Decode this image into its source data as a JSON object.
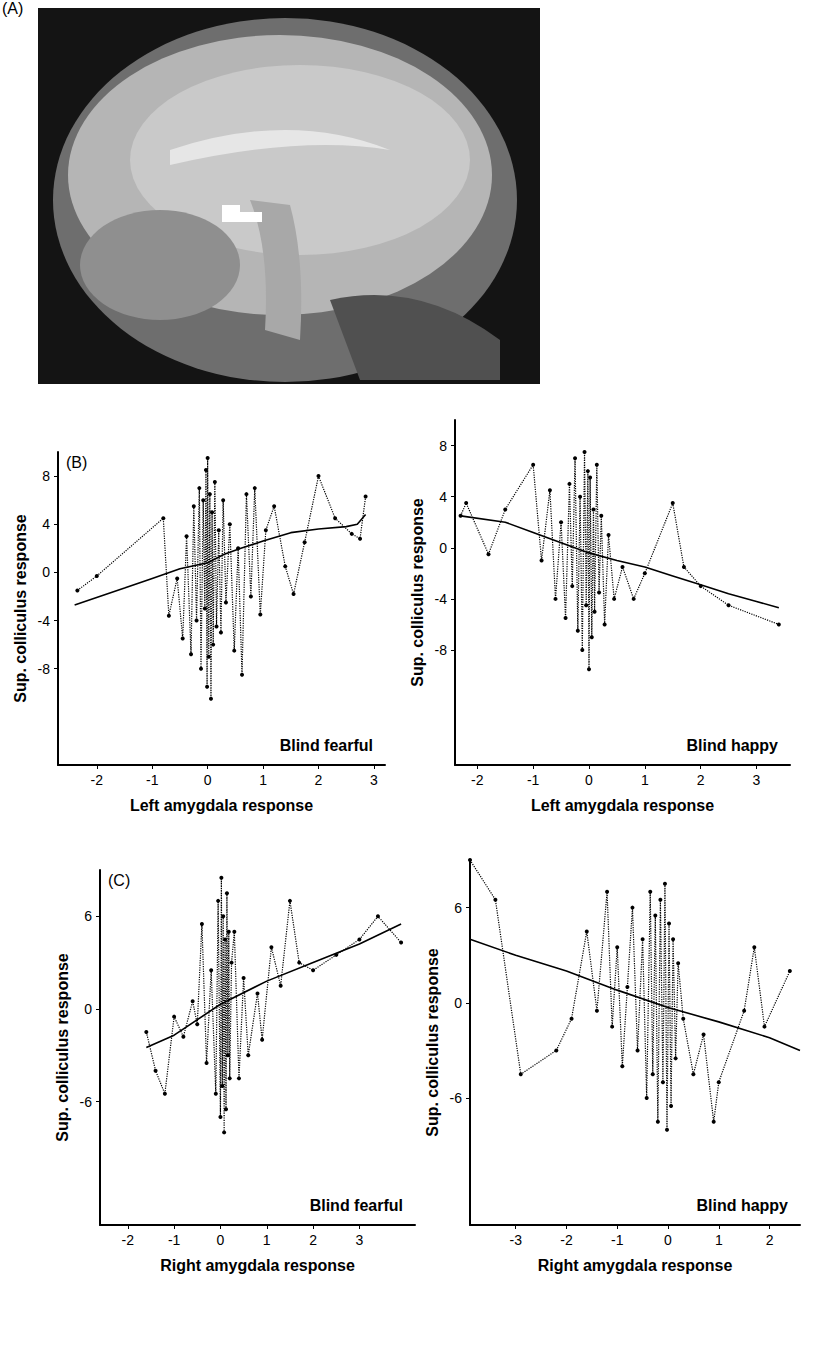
{
  "image_panel": {
    "panel_label": "(A)"
  },
  "chart_data": [
    {
      "type": "line",
      "panel_label": "(B)",
      "annotation": "Blind fearful",
      "xlabel": "Left amygdala response",
      "ylabel": "Sup. colliculus response",
      "xlim": [
        -2.7,
        3.2
      ],
      "xticks": [
        -2,
        -1,
        0,
        1,
        2,
        3
      ],
      "ylim": [
        -16,
        10
      ],
      "yticks": [
        -8,
        -4,
        0,
        4,
        8
      ],
      "grid": false,
      "series": [
        {
          "type": "line",
          "color": "#000000",
          "marker": "circle",
          "line_style": "dotted",
          "x": [
            -2.35,
            -2.0,
            -0.8,
            -0.7,
            -0.55,
            -0.45,
            -0.38,
            -0.3,
            -0.25,
            -0.2,
            -0.15,
            -0.12,
            -0.08,
            -0.05,
            -0.03,
            -0.01,
            0.0,
            0.02,
            0.04,
            0.06,
            0.08,
            0.1,
            0.13,
            0.16,
            0.2,
            0.24,
            0.28,
            0.33,
            0.4,
            0.48,
            0.55,
            0.62,
            0.7,
            0.78,
            0.85,
            0.95,
            1.05,
            1.2,
            1.4,
            1.55,
            1.75,
            2.0,
            2.3,
            2.6,
            2.75,
            2.85
          ],
          "values": [
            -1.5,
            -0.3,
            4.5,
            -3.6,
            -0.5,
            -5.5,
            3.0,
            -6.8,
            5.5,
            -4.0,
            7.0,
            -8.0,
            6.0,
            -3.0,
            8.5,
            -9.5,
            9.5,
            -7.0,
            6.5,
            -10.5,
            5.0,
            -6.0,
            7.5,
            -4.5,
            3.5,
            -5.0,
            6.0,
            -2.5,
            4.0,
            -6.5,
            2.0,
            -8.5,
            6.5,
            -2.0,
            7.0,
            -3.5,
            3.5,
            5.5,
            0.5,
            -1.8,
            2.5,
            8.0,
            4.5,
            3.2,
            2.8,
            6.3
          ]
        },
        {
          "type": "line",
          "color": "#000000",
          "marker": "none",
          "line_style": "solid",
          "x": [
            -2.4,
            -1.5,
            -1.0,
            -0.5,
            0,
            0.3,
            0.6,
            1.0,
            1.5,
            2.0,
            2.5,
            2.7,
            2.85
          ],
          "values": [
            -2.7,
            -1.3,
            -0.5,
            0.3,
            0.8,
            1.5,
            2.0,
            2.6,
            3.3,
            3.6,
            3.8,
            4.0,
            4.8
          ]
        }
      ]
    },
    {
      "type": "line",
      "annotation": "Blind happy",
      "xlabel": "Left amygdala response",
      "ylabel": "Sup. colliculus response",
      "xlim": [
        -2.4,
        3.6
      ],
      "xticks": [
        -2,
        -1,
        0,
        1,
        2,
        3
      ],
      "ylim": [
        -17,
        10
      ],
      "yticks": [
        -8,
        -4,
        0,
        4,
        8
      ],
      "grid": false,
      "series": [
        {
          "type": "line",
          "color": "#000000",
          "marker": "circle",
          "line_style": "dotted",
          "x": [
            -2.3,
            -2.2,
            -1.8,
            -1.5,
            -1.0,
            -0.85,
            -0.7,
            -0.6,
            -0.5,
            -0.42,
            -0.35,
            -0.3,
            -0.25,
            -0.2,
            -0.16,
            -0.12,
            -0.08,
            -0.05,
            -0.02,
            0.0,
            0.02,
            0.05,
            0.08,
            0.1,
            0.14,
            0.18,
            0.22,
            0.28,
            0.35,
            0.45,
            0.6,
            0.8,
            1.0,
            1.5,
            1.7,
            2.0,
            2.5,
            3.4
          ],
          "values": [
            2.5,
            3.5,
            -0.5,
            3.0,
            6.5,
            -1.0,
            4.5,
            -4.0,
            2.0,
            -5.5,
            5.0,
            -3.0,
            7.0,
            -6.5,
            4.0,
            -8.0,
            7.5,
            -4.5,
            6.0,
            -9.5,
            5.5,
            -7.0,
            3.0,
            -5.0,
            6.5,
            -3.5,
            2.5,
            -6.0,
            1.0,
            -4.0,
            -1.5,
            -4.0,
            -2.0,
            3.5,
            -1.5,
            -3.0,
            -4.5,
            -6.0
          ]
        },
        {
          "type": "line",
          "color": "#000000",
          "marker": "none",
          "line_style": "solid",
          "x": [
            -2.3,
            -1.5,
            -1.0,
            -0.5,
            0,
            0.5,
            1.0,
            1.5,
            2.0,
            2.5,
            3.0,
            3.4
          ],
          "values": [
            2.5,
            2.0,
            1.2,
            0.4,
            -0.4,
            -1.0,
            -1.5,
            -2.2,
            -2.9,
            -3.6,
            -4.2,
            -4.7
          ]
        }
      ]
    },
    {
      "type": "line",
      "panel_label": "(C)",
      "annotation": "Blind fearful",
      "xlabel": "Right amygdala response",
      "ylabel": "Sup. colliculus response",
      "xlim": [
        -2.6,
        4.2
      ],
      "xticks": [
        -2,
        -1,
        0,
        1,
        2,
        3
      ],
      "ylim": [
        -14,
        9
      ],
      "yticks": [
        -6,
        0,
        6
      ],
      "grid": false,
      "series": [
        {
          "type": "line",
          "color": "#000000",
          "marker": "circle",
          "line_style": "dotted",
          "x": [
            -1.6,
            -1.4,
            -1.2,
            -1.0,
            -0.8,
            -0.6,
            -0.5,
            -0.4,
            -0.3,
            -0.2,
            -0.1,
            -0.05,
            0.0,
            0.02,
            0.04,
            0.06,
            0.08,
            0.1,
            0.12,
            0.14,
            0.16,
            0.18,
            0.2,
            0.24,
            0.3,
            0.4,
            0.5,
            0.6,
            0.8,
            0.9,
            1.1,
            1.3,
            1.5,
            1.7,
            2.0,
            2.5,
            3.0,
            3.4,
            3.9
          ],
          "values": [
            -1.5,
            -4.0,
            -5.5,
            -0.5,
            -1.8,
            0.5,
            -1.0,
            5.5,
            -3.5,
            2.5,
            -5.5,
            7.0,
            -7.0,
            8.5,
            -5.0,
            6.0,
            -8.0,
            4.5,
            -6.5,
            7.5,
            -3.0,
            5.0,
            -4.5,
            3.0,
            5.0,
            -4.5,
            2.0,
            -3.0,
            1.0,
            -2.0,
            4.0,
            1.5,
            7.0,
            3.0,
            2.5,
            3.5,
            4.5,
            6.0,
            4.3
          ]
        },
        {
          "type": "line",
          "color": "#000000",
          "marker": "none",
          "line_style": "solid",
          "x": [
            -1.6,
            -1,
            0,
            1,
            2,
            3,
            3.9
          ],
          "values": [
            -2.5,
            -1.7,
            0.3,
            1.8,
            3.0,
            4.2,
            5.5
          ]
        }
      ]
    },
    {
      "type": "line",
      "annotation": "Blind happy",
      "xlabel": "Right amygdala response",
      "ylabel": "Sup. colliculus response",
      "xlim": [
        -3.9,
        2.6
      ],
      "xticks": [
        -3,
        -2,
        -1,
        0,
        1,
        2
      ],
      "ylim": [
        -14,
        9
      ],
      "yticks": [
        -6,
        0,
        6
      ],
      "grid": false,
      "series": [
        {
          "type": "line",
          "color": "#000000",
          "marker": "circle",
          "line_style": "dotted",
          "x": [
            -3.9,
            -3.4,
            -2.9,
            -2.2,
            -1.9,
            -1.6,
            -1.4,
            -1.2,
            -1.1,
            -1.0,
            -0.9,
            -0.8,
            -0.7,
            -0.6,
            -0.5,
            -0.42,
            -0.35,
            -0.3,
            -0.25,
            -0.2,
            -0.15,
            -0.1,
            -0.06,
            -0.02,
            0.02,
            0.06,
            0.1,
            0.15,
            0.2,
            0.3,
            0.5,
            0.7,
            0.9,
            1.0,
            1.5,
            1.7,
            1.9,
            2.4
          ],
          "values": [
            9.0,
            6.5,
            -4.5,
            -3.0,
            -1.0,
            4.5,
            -0.5,
            7.0,
            -1.5,
            3.5,
            -4.0,
            1.0,
            6.0,
            -3.0,
            4.0,
            -6.0,
            7.0,
            -4.5,
            5.5,
            -7.5,
            6.5,
            -5.0,
            7.5,
            -8.0,
            5.0,
            -6.5,
            4.0,
            -3.5,
            2.5,
            -1.0,
            -4.5,
            -2.0,
            -7.5,
            -5.0,
            -0.5,
            3.5,
            -1.5,
            2.0
          ]
        },
        {
          "type": "line",
          "color": "#000000",
          "marker": "none",
          "line_style": "solid",
          "x": [
            -3.9,
            -3,
            -2,
            -1,
            0,
            1,
            2,
            2.6
          ],
          "values": [
            4.0,
            3.0,
            2.0,
            0.8,
            -0.3,
            -1.2,
            -2.2,
            -3.0
          ]
        }
      ]
    }
  ]
}
